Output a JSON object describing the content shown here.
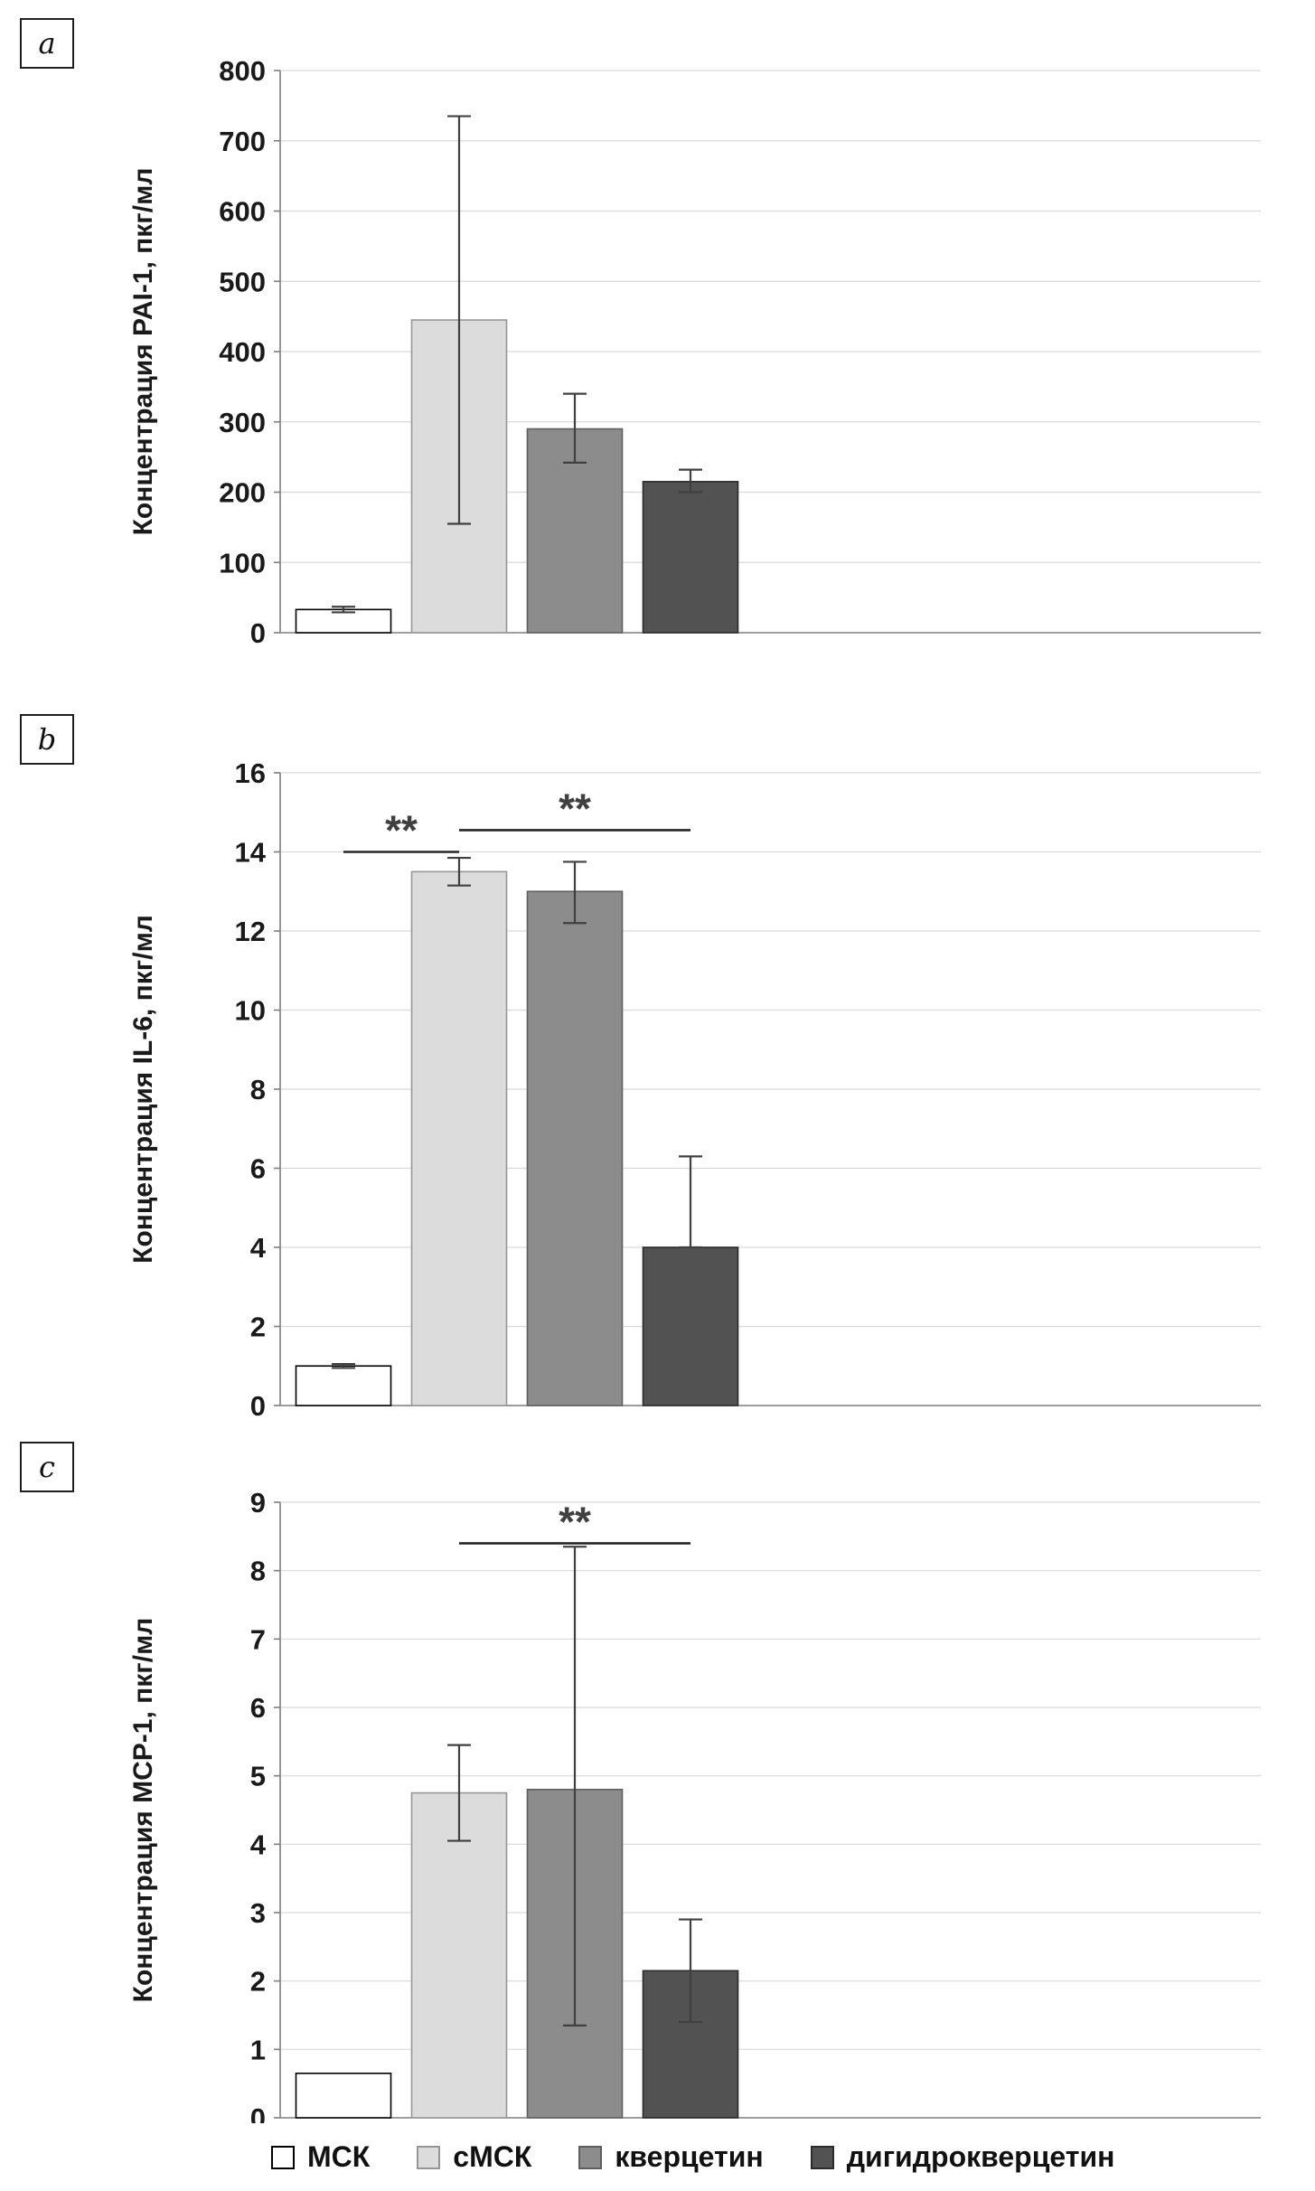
{
  "figure": {
    "background": "#ffffff"
  },
  "panels": [
    {
      "label": "a"
    },
    {
      "label": "b"
    },
    {
      "label": "c"
    }
  ],
  "series_styles": [
    {
      "name": "МСК",
      "fill": "#ffffff",
      "border": "#000000"
    },
    {
      "name": "сМСК",
      "fill": "#dcdcdc",
      "border": "#969696"
    },
    {
      "name": "кверцетин",
      "fill": "#8c8c8c",
      "border": "#5f5f5f"
    },
    {
      "name": "дигидрокверцетин",
      "fill": "#525252",
      "border": "#2b2b2b"
    }
  ],
  "legend": {
    "items": [
      "МСК",
      "сМСК",
      "кверцетин",
      "дигидрокверцетин"
    ]
  },
  "chart_data": [
    {
      "type": "bar",
      "panel": "a",
      "title": "",
      "xlabel": "",
      "ylabel": "Концентрация PAI-1, пкг/мл",
      "ylim": [
        0,
        800
      ],
      "ytick_step": 100,
      "grid": true,
      "legend_position": "bottom",
      "categories": [
        "МСК",
        "сМСК",
        "кверцетин",
        "дигидрокверцетин"
      ],
      "values": [
        33,
        445,
        290,
        215
      ],
      "errors": [
        [
          29,
          37
        ],
        [
          155,
          735
        ],
        [
          242,
          340
        ],
        [
          200,
          232
        ]
      ],
      "significance": []
    },
    {
      "type": "bar",
      "panel": "b",
      "title": "",
      "xlabel": "",
      "ylabel": "Концентрация IL-6, пкг/мл",
      "ylim": [
        0,
        16
      ],
      "ytick_step": 2,
      "grid": true,
      "legend_position": "bottom",
      "categories": [
        "МСК",
        "сМСК",
        "кверцетин",
        "дигидрокверцетин"
      ],
      "values": [
        1.0,
        13.5,
        13.0,
        4.0
      ],
      "errors": [
        [
          0.95,
          1.05
        ],
        [
          13.15,
          13.85
        ],
        [
          12.2,
          13.75
        ],
        [
          4.0,
          6.3
        ]
      ],
      "significance": [
        {
          "from": 0,
          "to": 1,
          "y": 14.0,
          "label": "**"
        },
        {
          "from": 1,
          "to": 3,
          "y": 14.55,
          "label": "**"
        }
      ]
    },
    {
      "type": "bar",
      "panel": "c",
      "title": "",
      "xlabel": "",
      "ylabel": "Концентрация MCP-1, пкг/мл",
      "ylim": [
        0,
        9
      ],
      "ytick_step": 1,
      "grid": true,
      "legend_position": "bottom",
      "categories": [
        "МСК",
        "сМСК",
        "кверцетин",
        "дигидрокверцетин"
      ],
      "values": [
        0.65,
        4.75,
        4.8,
        2.15
      ],
      "errors": [
        [
          null,
          null
        ],
        [
          4.05,
          5.45
        ],
        [
          1.35,
          8.35
        ],
        [
          1.4,
          2.9
        ]
      ],
      "significance": [
        {
          "from": 1,
          "to": 3,
          "y": 8.4,
          "label": "**"
        }
      ]
    }
  ]
}
